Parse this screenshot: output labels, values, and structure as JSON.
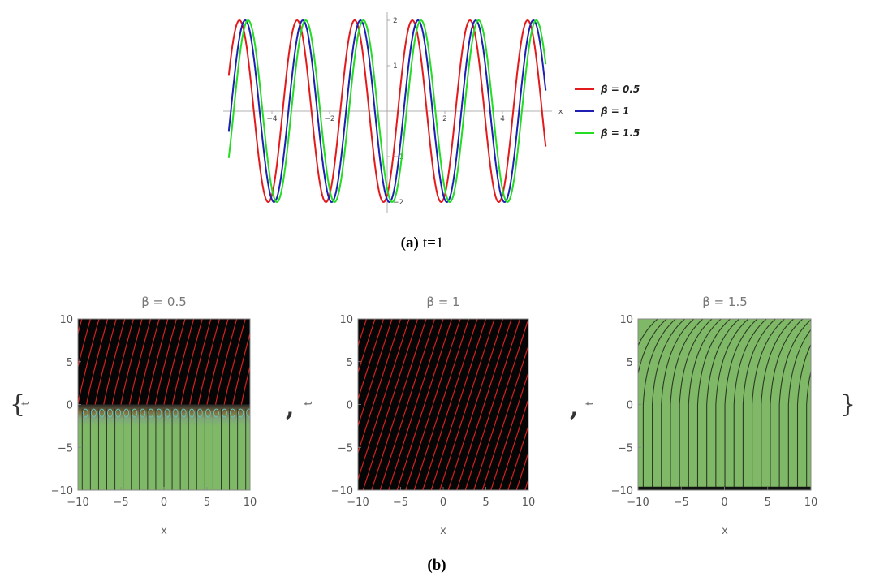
{
  "chart_data": [
    {
      "type": "line",
      "caption_label": "(a)",
      "caption_text": "t=1",
      "xlabel": "x",
      "xlim": [
        -5.5,
        5.5
      ],
      "ylim": [
        -2.3,
        2.3
      ],
      "xticks": [
        -4,
        -2,
        2,
        4
      ],
      "yticks": [
        -2,
        -1,
        1,
        2
      ],
      "series": [
        {
          "name": "β = 0.5",
          "color": "#e31a1c",
          "amplitude": 2,
          "period": 2.0,
          "phase_shift": 0.0
        },
        {
          "name": "β = 1",
          "color": "#1f1fb4",
          "amplitude": 2,
          "period": 2.0,
          "phase_shift": 0.2
        },
        {
          "name": "β = 1.5",
          "color": "#22dd22",
          "amplitude": 2,
          "period": 2.0,
          "phase_shift": 0.3
        }
      ]
    },
    {
      "type": "heatmap",
      "caption_label": "(b)",
      "open_brace": "{",
      "close_brace": "}",
      "separator": ",",
      "xlabel": "x",
      "ylabel": "t",
      "xlim": [
        -10,
        10
      ],
      "ylim": [
        -10,
        10
      ],
      "xticks": [
        -10,
        -5,
        0,
        5,
        10
      ],
      "yticks": [
        -10,
        -5,
        0,
        5,
        10
      ],
      "panels": [
        {
          "title": "β = 0.5"
        },
        {
          "title": "β = 1"
        },
        {
          "title": "β = 1.5"
        }
      ]
    }
  ]
}
